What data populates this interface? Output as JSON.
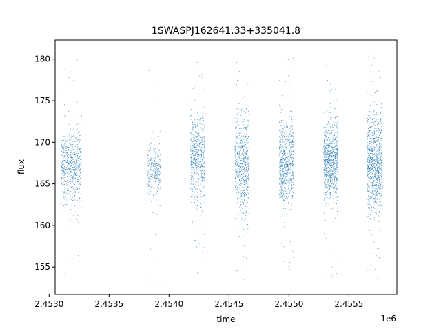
{
  "chart_data": {
    "type": "scatter",
    "title": "1SWASPJ162641.33+335041.8",
    "xlabel": "time",
    "ylabel": "flux",
    "x_offset_label": "1e6",
    "xlim": [
      2.45305,
      2.4559
    ],
    "ylim": [
      151.7,
      182.3
    ],
    "x_ticks": [
      2.453,
      2.4535,
      2.454,
      2.4545,
      2.455,
      2.4555
    ],
    "x_tick_labels": [
      "2.4530",
      "2.4535",
      "2.4540",
      "2.4545",
      "2.4550",
      "2.4555"
    ],
    "y_ticks": [
      155,
      160,
      165,
      170,
      175,
      180
    ],
    "y_tick_labels": [
      "155",
      "160",
      "165",
      "170",
      "175",
      "180"
    ],
    "grid": false,
    "marker_color": "#1f77b4",
    "series": [
      {
        "segments": [
          {
            "x_start": 2.4531,
            "x_end": 2.45327,
            "y_mean": 167.0,
            "y_spread": 2.2,
            "density": 700,
            "y_low": 153.2,
            "y_high": 180.6
          },
          {
            "x_start": 2.45382,
            "x_end": 2.45393,
            "y_mean": 166.6,
            "y_spread": 1.5,
            "density": 320,
            "y_low": 153.0,
            "y_high": 181.0
          },
          {
            "x_start": 2.45418,
            "x_end": 2.4543,
            "y_mean": 168.0,
            "y_spread": 2.6,
            "density": 700,
            "y_low": 154.2,
            "y_high": 180.4
          },
          {
            "x_start": 2.45455,
            "x_end": 2.45467,
            "y_mean": 167.0,
            "y_spread": 2.8,
            "density": 760,
            "y_low": 153.2,
            "y_high": 180.2
          },
          {
            "x_start": 2.45492,
            "x_end": 2.45504,
            "y_mean": 167.8,
            "y_spread": 2.4,
            "density": 760,
            "y_low": 154.3,
            "y_high": 180.2
          },
          {
            "x_start": 2.45529,
            "x_end": 2.45541,
            "y_mean": 167.6,
            "y_spread": 2.4,
            "density": 900,
            "y_low": 153.6,
            "y_high": 180.8
          },
          {
            "x_start": 2.45565,
            "x_end": 2.45578,
            "y_mean": 167.4,
            "y_spread": 3.0,
            "density": 1100,
            "y_low": 153.2,
            "y_high": 181.0
          }
        ]
      }
    ]
  }
}
